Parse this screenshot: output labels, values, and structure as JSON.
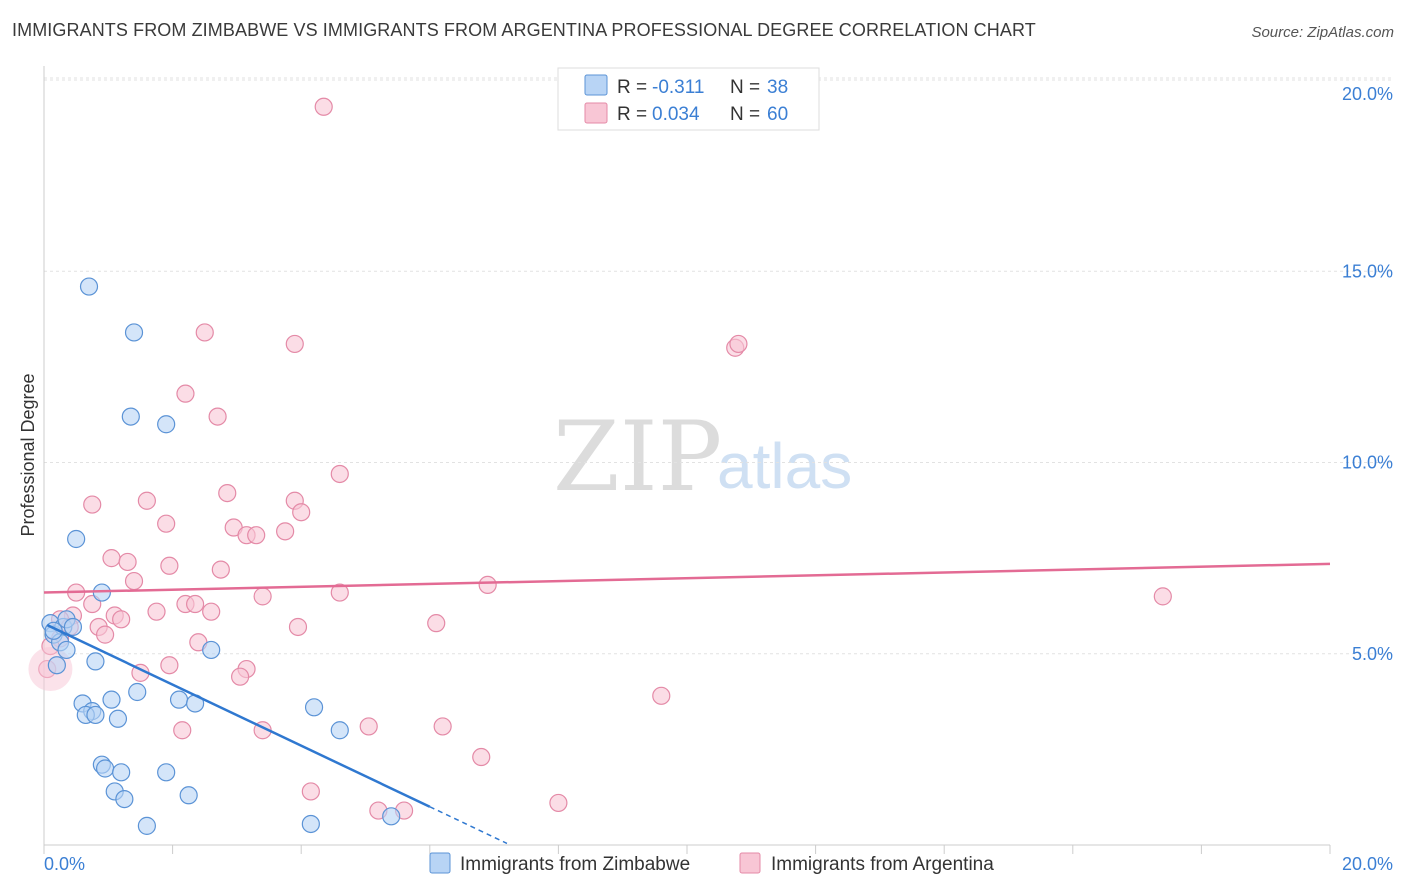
{
  "title": "IMMIGRANTS FROM ZIMBABWE VS IMMIGRANTS FROM ARGENTINA PROFESSIONAL DEGREE CORRELATION CHART",
  "source": "Source: ZipAtlas.com",
  "watermark": {
    "part1": "ZIP",
    "part2": "atlas"
  },
  "colors": {
    "zimbabwe_fill": "#b8d4f5",
    "zimbabwe_stroke": "#5b93d6",
    "zimbabwe_line": "#2f78d0",
    "argentina_fill": "#f8c6d5",
    "argentina_stroke": "#e48aa7",
    "argentina_line": "#e36b94",
    "tick": "#3b7fd4",
    "grid": "#e2e2e2"
  },
  "legend": {
    "r_label": "R =",
    "n_label": "N =",
    "zimbabwe": {
      "r": "-0.311",
      "n": "38"
    },
    "argentina": {
      "r": "0.034",
      "n": "60"
    }
  },
  "chart_data": {
    "type": "scatter",
    "title": "IMMIGRANTS FROM ZIMBABWE VS IMMIGRANTS FROM ARGENTINA PROFESSIONAL DEGREE CORRELATION CHART",
    "xlabel": "",
    "ylabel": "Professional Degree",
    "xlim": [
      0,
      20
    ],
    "ylim": [
      0,
      20
    ],
    "x_tick_labels": [
      "0.0%",
      "20.0%"
    ],
    "y_tick_labels": [
      "5.0%",
      "10.0%",
      "15.0%",
      "20.0%"
    ],
    "y_ticks": [
      5,
      10,
      15,
      20
    ],
    "grid": true,
    "legend_position": "top-center",
    "series": [
      {
        "name": "Immigrants from Zimbabwe",
        "r": -0.311,
        "n": 38,
        "trend": {
          "x0": 0.05,
          "y0": 5.75,
          "x1": 6.0,
          "y1": 1.0,
          "dash_to_x": 7.2
        },
        "points": [
          [
            0.7,
            14.6
          ],
          [
            1.4,
            13.4
          ],
          [
            1.35,
            11.2
          ],
          [
            1.9,
            11.0
          ],
          [
            0.5,
            8.0
          ],
          [
            0.1,
            5.8
          ],
          [
            0.15,
            5.5
          ],
          [
            0.3,
            5.7
          ],
          [
            0.25,
            5.3
          ],
          [
            0.35,
            5.9
          ],
          [
            0.35,
            5.1
          ],
          [
            0.45,
            5.7
          ],
          [
            0.2,
            4.7
          ],
          [
            0.9,
            6.6
          ],
          [
            0.8,
            4.8
          ],
          [
            2.6,
            5.1
          ],
          [
            0.6,
            3.7
          ],
          [
            0.75,
            3.5
          ],
          [
            0.65,
            3.4
          ],
          [
            0.8,
            3.4
          ],
          [
            1.05,
            3.8
          ],
          [
            1.45,
            4.0
          ],
          [
            1.15,
            3.3
          ],
          [
            2.1,
            3.8
          ],
          [
            2.35,
            3.7
          ],
          [
            4.2,
            3.6
          ],
          [
            4.6,
            3.0
          ],
          [
            0.9,
            2.1
          ],
          [
            0.95,
            2.0
          ],
          [
            1.2,
            1.9
          ],
          [
            1.9,
            1.9
          ],
          [
            1.1,
            1.4
          ],
          [
            1.25,
            1.2
          ],
          [
            2.25,
            1.3
          ],
          [
            1.6,
            0.5
          ],
          [
            4.15,
            0.55
          ],
          [
            5.4,
            0.75
          ],
          [
            0.15,
            5.6
          ]
        ]
      },
      {
        "name": "Immigrants from Argentina",
        "r": 0.034,
        "n": 60,
        "trend": {
          "x0": 0.0,
          "y0": 6.6,
          "x1": 20.0,
          "y1": 7.35
        },
        "points": [
          [
            4.35,
            19.3
          ],
          [
            2.5,
            13.4
          ],
          [
            3.9,
            13.1
          ],
          [
            10.75,
            13.0
          ],
          [
            10.8,
            13.1
          ],
          [
            2.2,
            11.8
          ],
          [
            2.7,
            11.2
          ],
          [
            4.6,
            9.7
          ],
          [
            0.75,
            8.9
          ],
          [
            1.6,
            9.0
          ],
          [
            2.85,
            9.2
          ],
          [
            3.9,
            9.0
          ],
          [
            4.0,
            8.7
          ],
          [
            1.9,
            8.4
          ],
          [
            2.95,
            8.3
          ],
          [
            3.15,
            8.1
          ],
          [
            3.3,
            8.1
          ],
          [
            3.75,
            8.2
          ],
          [
            1.05,
            7.5
          ],
          [
            1.3,
            7.4
          ],
          [
            1.95,
            7.3
          ],
          [
            2.75,
            7.2
          ],
          [
            1.4,
            6.9
          ],
          [
            0.5,
            6.6
          ],
          [
            0.75,
            6.3
          ],
          [
            3.4,
            6.5
          ],
          [
            4.6,
            6.6
          ],
          [
            6.9,
            6.8
          ],
          [
            17.4,
            6.5
          ],
          [
            2.2,
            6.3
          ],
          [
            2.35,
            6.3
          ],
          [
            1.75,
            6.1
          ],
          [
            2.6,
            6.1
          ],
          [
            0.45,
            6.0
          ],
          [
            1.1,
            6.0
          ],
          [
            1.2,
            5.9
          ],
          [
            0.25,
            5.9
          ],
          [
            0.4,
            5.7
          ],
          [
            0.85,
            5.7
          ],
          [
            3.95,
            5.7
          ],
          [
            6.1,
            5.8
          ],
          [
            0.95,
            5.5
          ],
          [
            0.25,
            5.4
          ],
          [
            0.1,
            5.2
          ],
          [
            2.4,
            5.3
          ],
          [
            1.95,
            4.7
          ],
          [
            3.15,
            4.6
          ],
          [
            1.5,
            4.5
          ],
          [
            3.05,
            4.4
          ],
          [
            0.05,
            4.6
          ],
          [
            9.6,
            3.9
          ],
          [
            2.15,
            3.0
          ],
          [
            3.4,
            3.0
          ],
          [
            5.05,
            3.1
          ],
          [
            6.2,
            3.1
          ],
          [
            6.8,
            2.3
          ],
          [
            4.15,
            1.4
          ],
          [
            8.0,
            1.1
          ],
          [
            5.2,
            0.9
          ],
          [
            5.6,
            0.9
          ]
        ]
      }
    ]
  },
  "bottom_legend": {
    "zimbabwe_label": "Immigrants from Zimbabwe",
    "argentina_label": "Immigrants from Argentina"
  }
}
